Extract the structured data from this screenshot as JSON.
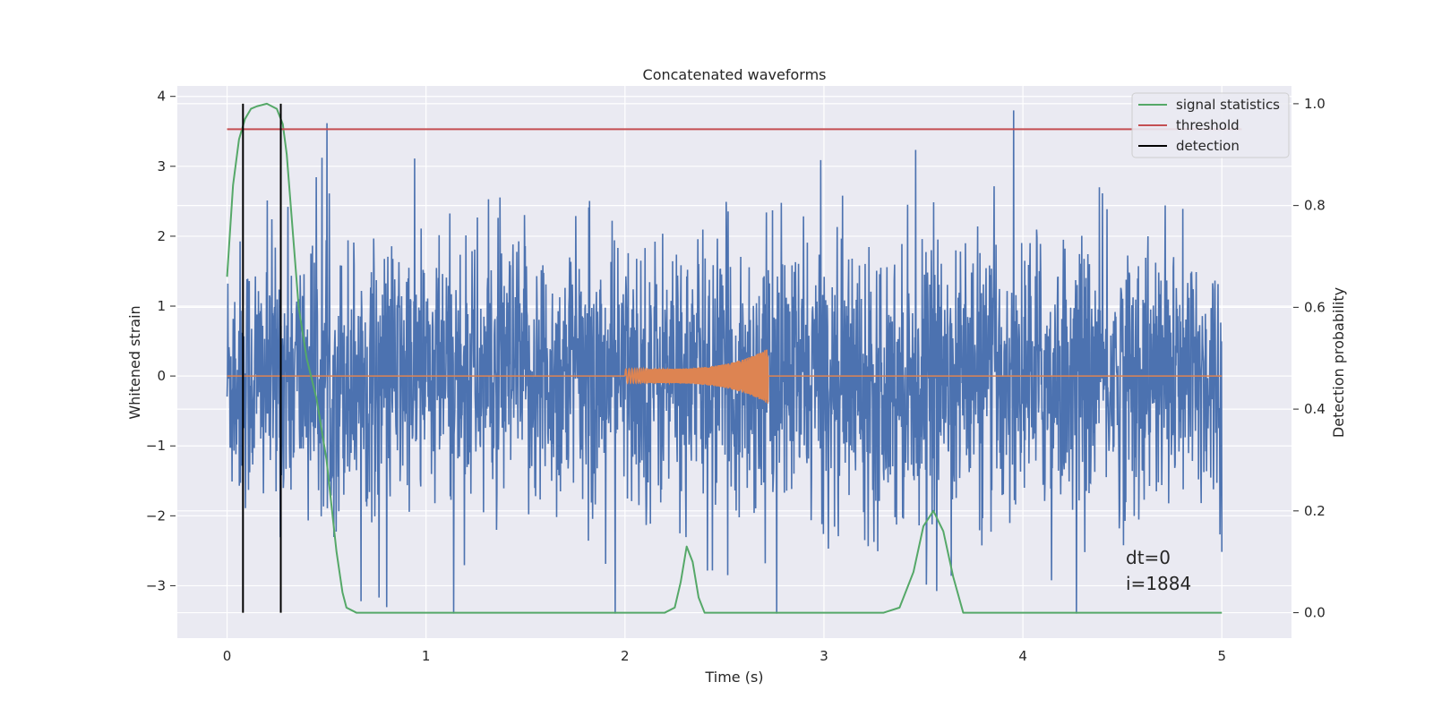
{
  "chart_data": {
    "type": "line",
    "title": "Concatenated waveforms",
    "xlabel": "Time (s)",
    "ylabel_left": "Whitened strain",
    "ylabel_right": "Detection probability",
    "xlim": [
      -0.25,
      5.35
    ],
    "ylim_left": [
      -3.75,
      4.15
    ],
    "ylim_right": [
      -0.05,
      1.035
    ],
    "x_ticks": [
      0,
      1,
      2,
      3,
      4,
      5
    ],
    "x_tick_labels": [
      "0",
      "1",
      "2",
      "3",
      "4",
      "5"
    ],
    "y_left_ticks": [
      -3,
      -2,
      -1,
      0,
      1,
      2,
      3,
      4
    ],
    "y_left_tick_labels": [
      "−3",
      "−2",
      "−1",
      "0",
      "1",
      "2",
      "3",
      "4"
    ],
    "y_right_ticks": [
      0.0,
      0.2,
      0.4,
      0.6,
      0.8,
      1.0
    ],
    "y_right_tick_labels": [
      "0.0",
      "0.2",
      "0.4",
      "0.6",
      "0.8",
      "1.0"
    ],
    "grid": true,
    "legend_position": "top-right",
    "background_color": "#eaeaf2",
    "series": [
      {
        "name": "",
        "axis": "left",
        "kind": "noise",
        "color": "#4c72b0",
        "x_range": [
          0,
          5
        ],
        "typical_amplitude": 1.8,
        "max": 3.8,
        "min": -3.4
      },
      {
        "name": "",
        "axis": "left",
        "kind": "chirp",
        "color": "#dd8452",
        "x_range": [
          0,
          5
        ],
        "active_range": [
          2.0,
          2.72
        ],
        "start_amplitude": 0.1,
        "peak_amplitude": 0.4
      },
      {
        "name": "signal statistics",
        "axis": "right",
        "color": "#55a868",
        "x": [
          0,
          0.03,
          0.06,
          0.09,
          0.12,
          0.15,
          0.2,
          0.25,
          0.28,
          0.3,
          0.33,
          0.36,
          0.4,
          0.45,
          0.5,
          0.55,
          0.58,
          0.6,
          0.65,
          2.2,
          2.25,
          2.28,
          2.31,
          2.34,
          2.37,
          2.4,
          3.3,
          3.38,
          3.45,
          3.5,
          3.55,
          3.6,
          3.65,
          3.7,
          5.0
        ],
        "values": [
          0.66,
          0.84,
          0.93,
          0.97,
          0.99,
          0.995,
          1.0,
          0.99,
          0.96,
          0.9,
          0.75,
          0.6,
          0.5,
          0.42,
          0.3,
          0.12,
          0.04,
          0.01,
          0.0,
          0.0,
          0.01,
          0.06,
          0.13,
          0.1,
          0.03,
          0.0,
          0.0,
          0.01,
          0.08,
          0.17,
          0.2,
          0.16,
          0.07,
          0.0,
          0.0
        ]
      },
      {
        "name": "threshold",
        "axis": "right",
        "color": "#c44e52",
        "x": [
          0,
          5.1
        ],
        "values": [
          0.95,
          0.95
        ]
      },
      {
        "name": "detection",
        "axis": "right",
        "color": "#000000",
        "kind": "vlines",
        "x": [
          0.08,
          0.27
        ],
        "from": 0.0,
        "to": 1.0
      }
    ],
    "annotations": [
      "dt=0",
      "i=1884"
    ]
  }
}
